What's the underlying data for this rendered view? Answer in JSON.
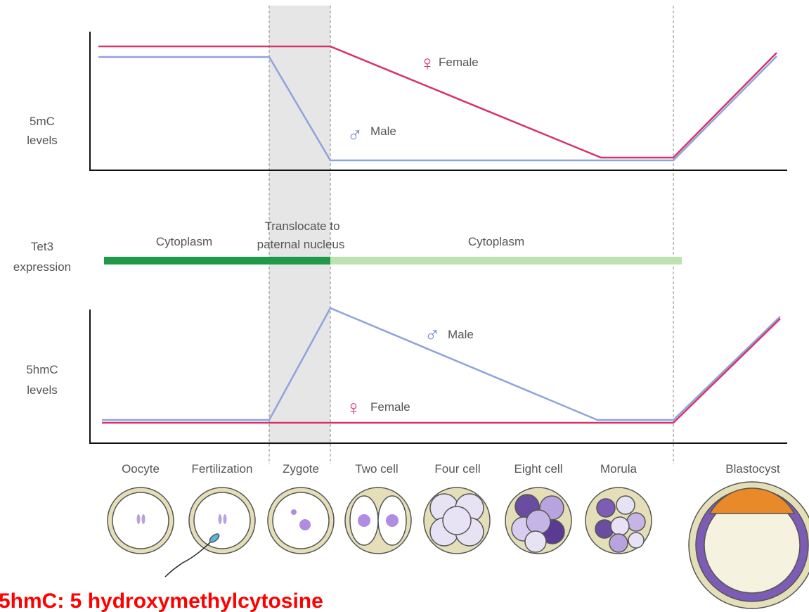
{
  "methylation_panel": {
    "axis_label": [
      "5mC",
      "levels"
    ],
    "female_symbol": "♀",
    "female_label": "Female",
    "male_symbol": "♂",
    "male_label": "Male"
  },
  "tet3_panel": {
    "axis_label": [
      "Tet3",
      "expression"
    ],
    "phase_1": "Cytoplasm",
    "phase_2": [
      "Translocate to",
      "paternal nucleus"
    ],
    "phase_3": "Cytoplasm"
  },
  "hydroxymethylation_panel": {
    "axis_label": [
      "5hmC",
      "levels"
    ],
    "male_symbol": "♂",
    "male_label": "Male",
    "female_symbol": "♀",
    "female_label": "Female"
  },
  "stages": [
    "Oocyte",
    "Fertilization",
    "Zygote",
    "Two cell",
    "Four cell",
    "Eight cell",
    "Morula",
    "Blastocyst"
  ],
  "footnote": "5hmC: 5 hydroxymethylcytosine"
}
